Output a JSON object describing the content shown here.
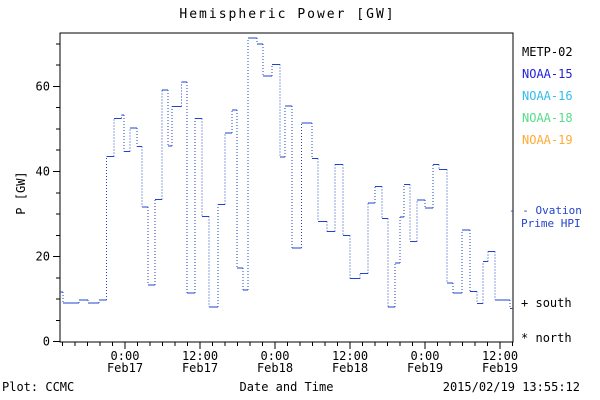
{
  "title": "Hemispheric Power [GW]",
  "y_axis": {
    "label": "P [GW]",
    "major_ticks": [
      0,
      20,
      40,
      60
    ],
    "minor_step": 5
  },
  "x_axis": {
    "label": "Date and Time",
    "major_labels": [
      {
        "time": "0:00",
        "date": "Feb17"
      },
      {
        "time": "12:00",
        "date": "Feb17"
      },
      {
        "time": "0:00",
        "date": "Feb18"
      },
      {
        "time": "12:00",
        "date": "Feb18"
      },
      {
        "time": "0:00",
        "date": "Feb19"
      },
      {
        "time": "12:00",
        "date": "Feb19"
      }
    ],
    "minor_step_hours": 2
  },
  "legend": {
    "satellites": [
      {
        "label": "METP-02",
        "color": "#000000"
      },
      {
        "label": "NOAA-15",
        "color": "#2222dd"
      },
      {
        "label": "NOAA-16",
        "color": "#33bbee"
      },
      {
        "label": "NOAA-18",
        "color": "#55dd88"
      },
      {
        "label": "NOAA-19",
        "color": "#ffaa33"
      }
    ],
    "ovation": {
      "dash": "- -",
      "line1": "Ovation",
      "line2": "Prime HPI",
      "color": "#2244cc"
    },
    "markers": [
      {
        "symbol": "+",
        "label": "south"
      },
      {
        "symbol": "*",
        "label": "north"
      }
    ]
  },
  "footer": {
    "left": "Plot: CCMC",
    "center": "Date and Time",
    "right": "2015/02/19 13:55:12"
  },
  "chart_data": {
    "type": "line",
    "subtype": "step-post",
    "title": "Hemispheric Power [GW]",
    "xlabel": "Date and Time",
    "ylabel": "P [GW]",
    "x_unit": "hours since 2015-02-16 00:00 UT",
    "xlim": [
      13.6,
      86.1
    ],
    "ylim": [
      0,
      72.5
    ],
    "x_major_ticks": [
      24,
      36,
      48,
      60,
      72,
      84
    ],
    "y_major_ticks": [
      0,
      20,
      40,
      60
    ],
    "grid": false,
    "legend_position": "right",
    "series": [
      {
        "name": "Ovation Prime HPI",
        "color": "#2244cc",
        "style": "dotted-step",
        "x": [
          13.6,
          14.1,
          16.6,
          18.1,
          19.8,
          21.0,
          22.2,
          23.4,
          23.8,
          24.8,
          25.9,
          26.7,
          27.7,
          28.8,
          29.9,
          30.9,
          31.5,
          33.0,
          33.9,
          35.2,
          36.3,
          37.4,
          38.9,
          40.0,
          41.1,
          41.9,
          42.9,
          43.7,
          45.1,
          46.1,
          47.5,
          48.8,
          49.6,
          50.7,
          52.2,
          53.9,
          54.9,
          56.3,
          57.6,
          58.9,
          60.0,
          61.6,
          62.9,
          64.0,
          65.1,
          66.1,
          67.2,
          68.0,
          68.6,
          69.6,
          70.7,
          72.0,
          73.3,
          74.2,
          75.5,
          76.5,
          77.9,
          79.2,
          80.3,
          81.3,
          82.1,
          83.2,
          85.6
        ],
        "y": [
          11.7,
          9.1,
          9.8,
          9.1,
          9.8,
          43.5,
          52.5,
          53.3,
          44.7,
          50.2,
          45.9,
          31.7,
          13.3,
          33.4,
          59.2,
          46.0,
          55.3,
          61.0,
          11.4,
          52.5,
          29.4,
          8.2,
          32.2,
          49.0,
          54.5,
          17.3,
          12.2,
          71.4,
          70.0,
          62.4,
          65.1,
          43.4,
          55.4,
          22.0,
          51.4,
          43.1,
          28.2,
          25.9,
          41.6,
          24.9,
          14.9,
          16.0,
          32.6,
          36.5,
          28.9,
          8.2,
          18.5,
          29.3,
          36.9,
          23.5,
          33.3,
          31.4,
          41.6,
          40.5,
          13.8,
          11.4,
          26.3,
          11.8,
          9.0,
          18.8,
          21.2,
          9.8,
          7.8
        ]
      }
    ]
  }
}
